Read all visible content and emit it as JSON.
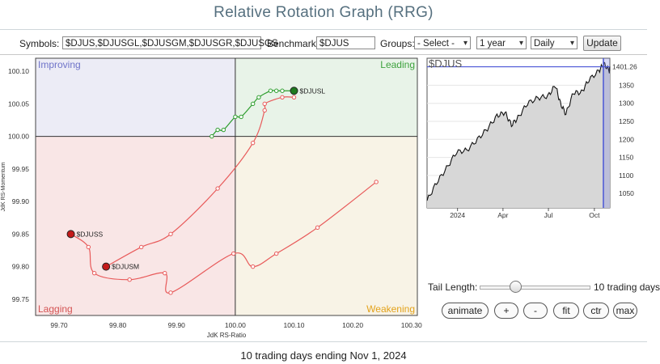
{
  "page": {
    "title": "Relative Rotation Graph (RRG)",
    "footer": "10 trading days ending Nov 1, 2024"
  },
  "controls": {
    "symbols_label": "Symbols:",
    "symbols_value": "$DJUS,$DJUSGL,$DJUSGM,$DJUSGR,$DJUSGS",
    "benchmark_label": "Benchmark:",
    "benchmark_value": "$DJUS",
    "groups_label": "Groups:",
    "groups_value": "- Select -",
    "period_value": "1 year",
    "frequency_value": "Daily",
    "update_label": "Update"
  },
  "chart_data": [
    {
      "type": "scatter",
      "title": "",
      "xlabel": "JdK RS-Ratio",
      "ylabel": "JdK RS-Momentum",
      "xlim": [
        99.66,
        100.31
      ],
      "ylim": [
        99.725,
        100.12
      ],
      "x_ticks": [
        "99.70",
        "99.80",
        "99.90",
        "100.00",
        "100.10",
        "100.20",
        "100.30"
      ],
      "y_ticks": [
        "100.10",
        "100.05",
        "100.00",
        "99.95",
        "99.90",
        "99.85",
        "99.80",
        "99.75"
      ],
      "center": [
        100,
        100
      ],
      "quadrants": [
        {
          "name": "Improving",
          "color": "#6f74c9",
          "bg": "#ececf6"
        },
        {
          "name": "Leading",
          "color": "#3ea23e",
          "bg": "#e8f3e8"
        },
        {
          "name": "Lagging",
          "color": "#d45454",
          "bg": "#f9e6e6"
        },
        {
          "name": "Weakening",
          "color": "#e3a21b",
          "bg": "#f8f3e6"
        }
      ],
      "series": [
        {
          "name": "$DJUSL",
          "color": "#2e9e2e",
          "head_color": "#1f7a1f",
          "points": [
            [
              99.96,
              100.0
            ],
            [
              99.97,
              100.01
            ],
            [
              99.98,
              100.01
            ],
            [
              100.0,
              100.03
            ],
            [
              100.01,
              100.03
            ],
            [
              100.03,
              100.05
            ],
            [
              100.04,
              100.06
            ],
            [
              100.06,
              100.07
            ],
            [
              100.07,
              100.07
            ],
            [
              100.08,
              100.07
            ],
            [
              100.1,
              100.07
            ]
          ]
        },
        {
          "name": "$DJUSM",
          "color": "#e85a5a",
          "head_color": "#c41a1a",
          "points": [
            [
              100.1,
              100.06
            ],
            [
              100.08,
              100.06
            ],
            [
              100.05,
              100.05
            ],
            [
              100.05,
              100.04
            ],
            [
              100.03,
              99.99
            ],
            [
              99.97,
              99.92
            ],
            [
              99.89,
              99.85
            ],
            [
              99.84,
              99.83
            ],
            [
              99.78,
              99.8
            ]
          ]
        },
        {
          "name": "$DJUSS",
          "color": "#e85a5a",
          "head_color": "#c41a1a",
          "points": [
            [
              100.24,
              99.93
            ],
            [
              100.14,
              99.86
            ],
            [
              100.07,
              99.82
            ],
            [
              100.03,
              99.8
            ],
            [
              99.997,
              99.82
            ],
            [
              99.89,
              99.76
            ],
            [
              99.88,
              99.79
            ],
            [
              99.82,
              99.78
            ],
            [
              99.76,
              99.79
            ],
            [
              99.75,
              99.83
            ],
            [
              99.72,
              99.85
            ]
          ]
        }
      ]
    },
    {
      "type": "area",
      "title": "$DJUS",
      "current_value": "1401.26",
      "x_ticks": [
        "2024",
        "Apr",
        "Jul",
        "Oct"
      ],
      "y_ticks": [
        "1350",
        "1300",
        "1250",
        "1200",
        "1150",
        "1100",
        "1050"
      ],
      "ylim": [
        1010,
        1425
      ],
      "x": [
        "2023-11-01",
        "2023-11-20",
        "2023-12-10",
        "2023-12-30",
        "2024-01-20",
        "2024-02-10",
        "2024-03-01",
        "2024-03-20",
        "2024-04-05",
        "2024-04-18",
        "2024-05-01",
        "2024-05-20",
        "2024-06-10",
        "2024-06-30",
        "2024-07-15",
        "2024-07-25",
        "2024-08-05",
        "2024-08-20",
        "2024-09-05",
        "2024-09-20",
        "2024-10-10",
        "2024-10-20",
        "2024-10-31",
        "2024-11-01"
      ],
      "values": [
        1030,
        1080,
        1120,
        1165,
        1170,
        1200,
        1230,
        1265,
        1275,
        1240,
        1260,
        1300,
        1315,
        1320,
        1350,
        1300,
        1270,
        1330,
        1330,
        1365,
        1390,
        1410,
        1390,
        1401
      ]
    }
  ],
  "side_panel": {
    "tail_label": "Tail Length:",
    "tail_value_text": "10 trading days",
    "tail_slider_fraction": 0.32,
    "buttons": [
      "animate",
      "+",
      "-",
      "fit",
      "ctr",
      "max"
    ]
  }
}
